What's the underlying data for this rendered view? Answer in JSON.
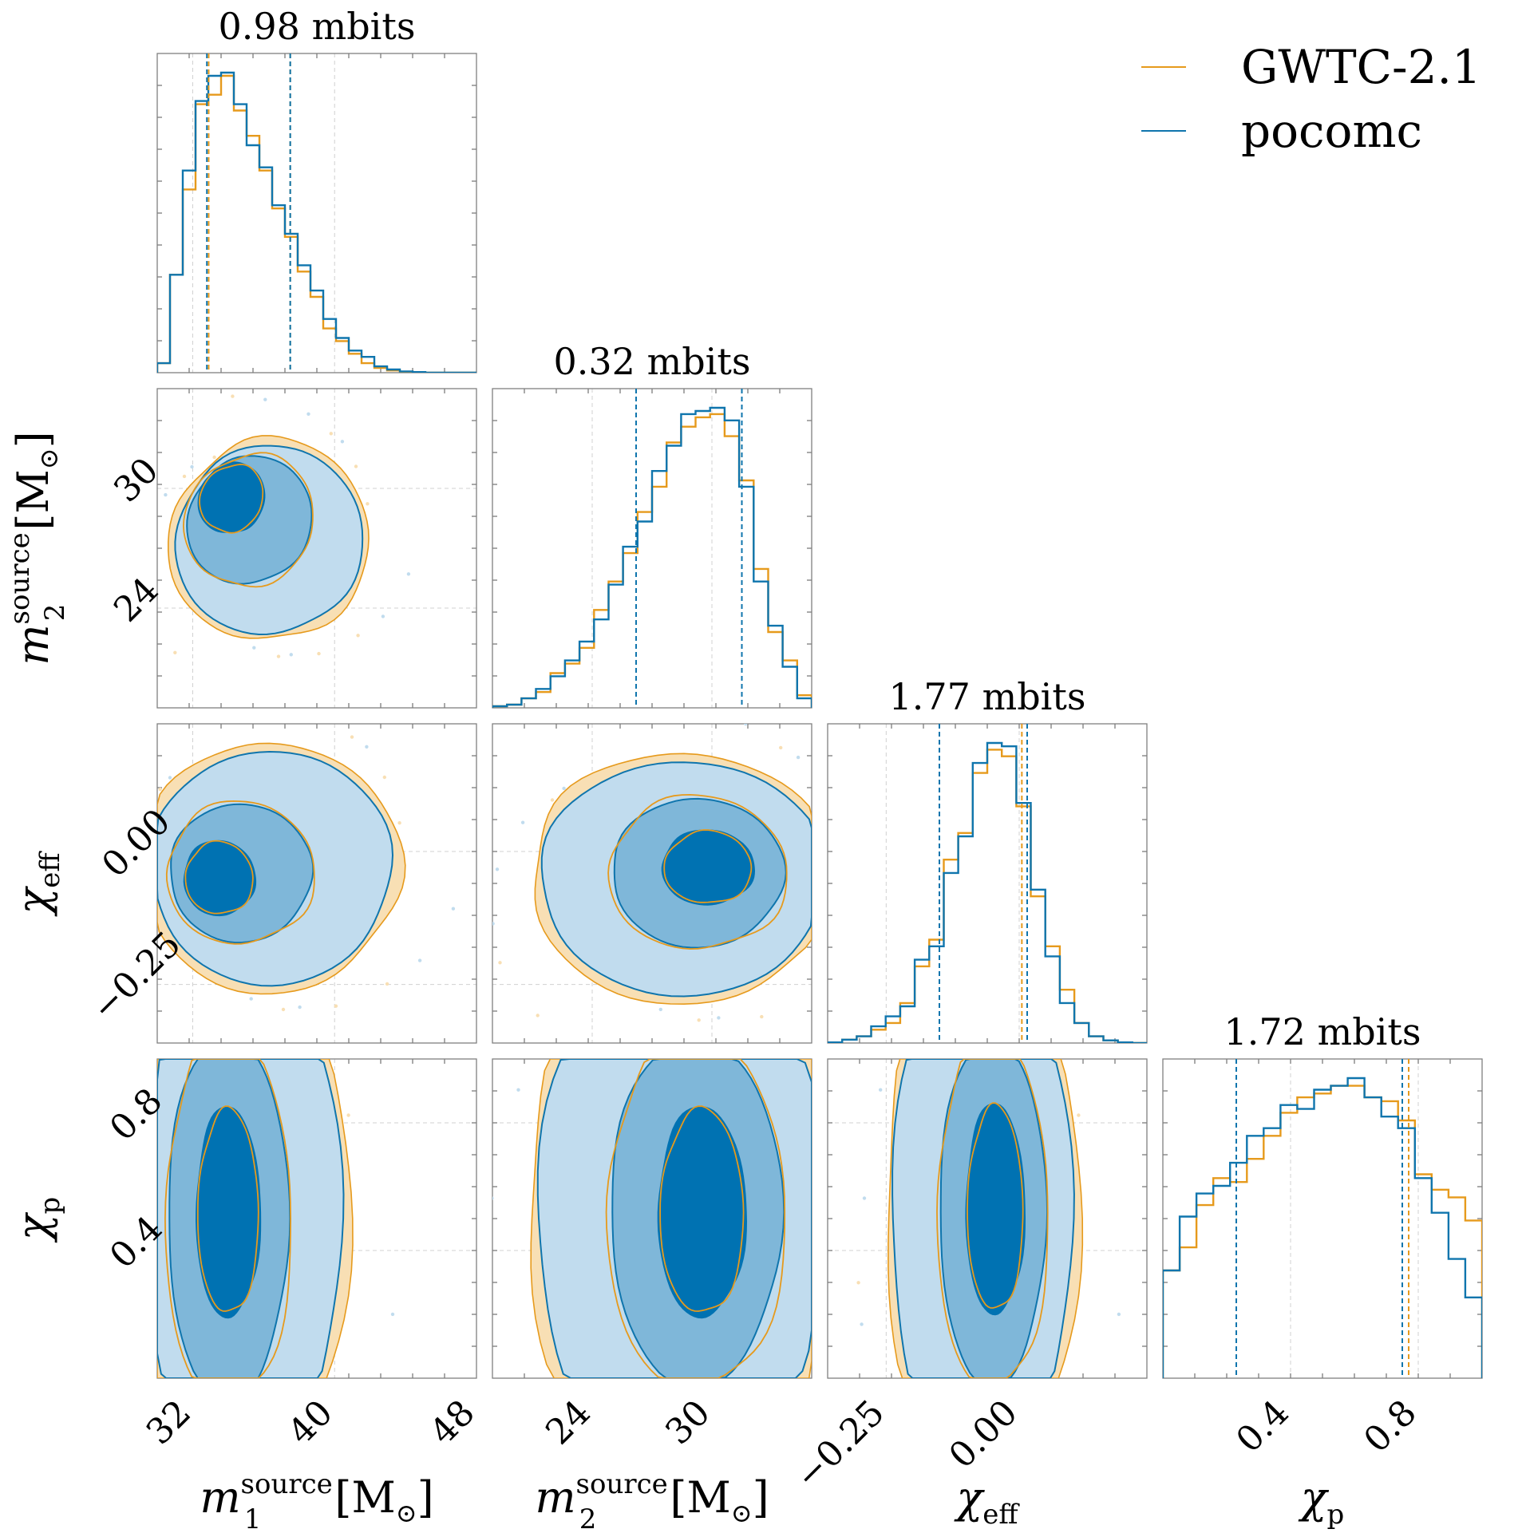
{
  "colors": {
    "gwtc": "#e69a1c",
    "gwtc_fill": "#f8dfb4",
    "pocomc": "#0f75ad",
    "pocomc_dark": "#0072b2",
    "pocomc_mid": "#7fb7d9",
    "pocomc_light": "#c1dcee"
  },
  "legend": {
    "items": [
      {
        "label": "GWTC-2.1",
        "color": "#e69a1c"
      },
      {
        "label": "pocomc",
        "color": "#0f75ad"
      }
    ]
  },
  "axes": {
    "x_titles": [
      {
        "base": "m",
        "sub": "1",
        "sup": "source",
        "unit": "[M",
        "unit_sub": "⊙",
        "close": "]"
      },
      {
        "base": "m",
        "sub": "2",
        "sup": "source",
        "unit": "[M",
        "unit_sub": "⊙",
        "close": "]"
      },
      {
        "base": "χ",
        "sub": "eff",
        "sup": "",
        "unit": "",
        "unit_sub": "",
        "close": ""
      },
      {
        "base": "χ",
        "sub": "p",
        "sup": "",
        "unit": "",
        "unit_sub": "",
        "close": ""
      }
    ],
    "y_titles": [
      {
        "base": "m",
        "sub": "2",
        "sup": "source",
        "unit": "[M",
        "unit_sub": "⊙",
        "close": "]"
      },
      {
        "base": "χ",
        "sub": "eff",
        "sup": "",
        "unit": "",
        "unit_sub": "",
        "close": ""
      },
      {
        "base": "χ",
        "sub": "p",
        "sup": "",
        "unit": "",
        "unit_sub": "",
        "close": ""
      }
    ]
  },
  "chart_data": {
    "type": "corner",
    "parameters": [
      {
        "name": "m1_source",
        "range": [
          30,
          48
        ],
        "ticks": [
          32,
          40,
          48
        ],
        "tick_labels": [
          "32",
          "40",
          "48"
        ]
      },
      {
        "name": "m2_source",
        "range": [
          19,
          35
        ],
        "ticks": [
          24,
          30
        ],
        "tick_labels": [
          "24",
          "30"
        ]
      },
      {
        "name": "chi_eff",
        "range": [
          -0.36,
          0.24
        ],
        "ticks": [
          -0.25,
          0.0
        ],
        "tick_labels": [
          "−0.25",
          "0.00"
        ]
      },
      {
        "name": "chi_p",
        "range": [
          0.0,
          1.0
        ],
        "ticks": [
          0.4,
          0.8
        ],
        "tick_labels": [
          "0.4",
          "0.8"
        ]
      }
    ],
    "diagonal": [
      {
        "title": "0.98 mbits",
        "bins_start": 30,
        "bins_end": 48,
        "quantile_lines": {
          "gwtc": [
            32.9,
            37.5
          ],
          "pocomc": [
            32.8,
            37.5
          ]
        },
        "gwtc": [
          0.03,
          0.31,
          0.58,
          0.85,
          0.88,
          0.94,
          0.83,
          0.75,
          0.64,
          0.52,
          0.43,
          0.32,
          0.24,
          0.14,
          0.1,
          0.06,
          0.03,
          0.015,
          0.007,
          0.002,
          0.001,
          0.0,
          0.0,
          0.0,
          0.0
        ],
        "pocomc": [
          0.03,
          0.31,
          0.64,
          0.86,
          0.94,
          0.95,
          0.85,
          0.72,
          0.65,
          0.53,
          0.44,
          0.34,
          0.26,
          0.17,
          0.11,
          0.07,
          0.05,
          0.02,
          0.01,
          0.004,
          0.002,
          0.0,
          0.0,
          0.0,
          0.0
        ]
      },
      {
        "title": "0.32 mbits",
        "bins_start": 19,
        "bins_end": 35,
        "quantile_lines": {
          "gwtc": [
            26.2,
            31.5
          ],
          "pocomc": [
            26.2,
            31.5
          ]
        },
        "gwtc": [
          0.005,
          0.01,
          0.03,
          0.05,
          0.11,
          0.14,
          0.19,
          0.31,
          0.4,
          0.49,
          0.62,
          0.7,
          0.84,
          0.89,
          0.92,
          0.93,
          0.86,
          0.72,
          0.44,
          0.24,
          0.15,
          0.04
        ],
        "pocomc": [
          0.005,
          0.01,
          0.03,
          0.06,
          0.1,
          0.15,
          0.21,
          0.28,
          0.39,
          0.51,
          0.59,
          0.75,
          0.83,
          0.93,
          0.94,
          0.95,
          0.91,
          0.7,
          0.4,
          0.26,
          0.13,
          0.03
        ]
      },
      {
        "title": "1.77 mbits",
        "bins_start": -0.36,
        "bins_end": 0.24,
        "quantile_lines": {
          "gwtc": [
            -0.15,
            0.005
          ],
          "pocomc": [
            -0.15,
            0.015
          ]
        },
        "gwtc": [
          0.002,
          0.01,
          0.02,
          0.04,
          0.06,
          0.12,
          0.23,
          0.31,
          0.55,
          0.63,
          0.81,
          0.88,
          0.86,
          0.71,
          0.44,
          0.29,
          0.16,
          0.06,
          0.02,
          0.008,
          0.002,
          0.0
        ],
        "pocomc": [
          0.002,
          0.01,
          0.02,
          0.05,
          0.08,
          0.11,
          0.25,
          0.29,
          0.51,
          0.62,
          0.84,
          0.9,
          0.89,
          0.72,
          0.46,
          0.26,
          0.12,
          0.06,
          0.02,
          0.008,
          0.002,
          0.0
        ]
      },
      {
        "title": "1.72 mbits",
        "bins_start": 0.0,
        "bins_end": 1.0,
        "quantile_lines": {
          "gwtc": [
            0.23,
            0.77
          ],
          "pocomc": [
            0.23,
            0.75
          ]
        },
        "gwtc": [
          0.28,
          0.34,
          0.45,
          0.52,
          0.51,
          0.57,
          0.63,
          0.69,
          0.73,
          0.74,
          0.76,
          0.76,
          0.73,
          0.72,
          0.67,
          0.53,
          0.49,
          0.47,
          0.41
        ],
        "pocomc": [
          0.28,
          0.42,
          0.48,
          0.5,
          0.56,
          0.63,
          0.65,
          0.71,
          0.7,
          0.75,
          0.76,
          0.78,
          0.73,
          0.68,
          0.65,
          0.52,
          0.43,
          0.31,
          0.21
        ]
      }
    ],
    "contours": [
      {
        "x_param": "m1_source",
        "y_param": "m2_source",
        "levels": [
          {
            "cx": 34.2,
            "cy": 29.5,
            "sx": 1.8,
            "sy": 1.8,
            "rot": -0.55
          },
          {
            "cx": 35.2,
            "cy": 28.4,
            "sx": 3.4,
            "sy": 3.3,
            "rot": -0.65
          },
          {
            "cx": 36.3,
            "cy": 27.4,
            "sx": 5.2,
            "sy": 4.8,
            "rot": -0.7
          }
        ]
      },
      {
        "x_param": "m1_source",
        "y_param": "chi_eff",
        "levels": [
          {
            "cx": 33.5,
            "cy": -0.05,
            "sx": 2.0,
            "sy": 0.07,
            "rot": 0.1
          },
          {
            "cx": 34.7,
            "cy": -0.04,
            "sx": 4.0,
            "sy": 0.13,
            "rot": 0.1
          },
          {
            "cx": 36.4,
            "cy": -0.03,
            "sx": 6.8,
            "sy": 0.22,
            "rot": 0.1
          }
        ]
      },
      {
        "x_param": "m2_source",
        "y_param": "chi_eff",
        "levels": [
          {
            "cx": 29.8,
            "cy": -0.03,
            "sx": 2.3,
            "sy": 0.07,
            "rot": 0.0
          },
          {
            "cx": 29.3,
            "cy": -0.04,
            "sx": 4.3,
            "sy": 0.14,
            "rot": 0.0
          },
          {
            "cx": 28.6,
            "cy": -0.05,
            "sx": 7.2,
            "sy": 0.22,
            "rot": 0.0
          }
        ]
      },
      {
        "x_param": "m1_source",
        "y_param": "chi_p",
        "levels": [
          {
            "cx": 34.0,
            "cy": 0.52,
            "sx": 1.8,
            "sy": 0.33,
            "rot": 0.0
          },
          {
            "cx": 34.0,
            "cy": 0.5,
            "sx": 3.4,
            "sy": 0.58,
            "rot": 0.0
          },
          {
            "cx": 34.8,
            "cy": 0.5,
            "sx": 5.6,
            "sy": 0.85,
            "rot": 0.0
          }
        ]
      },
      {
        "x_param": "m2_source",
        "y_param": "chi_p",
        "levels": [
          {
            "cx": 29.5,
            "cy": 0.52,
            "sx": 2.2,
            "sy": 0.33,
            "rot": 0.0
          },
          {
            "cx": 29.2,
            "cy": 0.52,
            "sx": 4.3,
            "sy": 0.55,
            "rot": 0.0
          },
          {
            "cx": 28.6,
            "cy": 0.5,
            "sx": 7.4,
            "sy": 0.85,
            "rot": 0.0
          }
        ]
      },
      {
        "x_param": "chi_eff",
        "y_param": "chi_p",
        "levels": [
          {
            "cx": -0.045,
            "cy": 0.53,
            "sx": 0.055,
            "sy": 0.33,
            "rot": 0.0
          },
          {
            "cx": -0.05,
            "cy": 0.52,
            "sx": 0.1,
            "sy": 0.55,
            "rot": 0.0
          },
          {
            "cx": -0.07,
            "cy": 0.5,
            "sx": 0.17,
            "sy": 0.85,
            "rot": 0.0
          }
        ]
      }
    ]
  }
}
